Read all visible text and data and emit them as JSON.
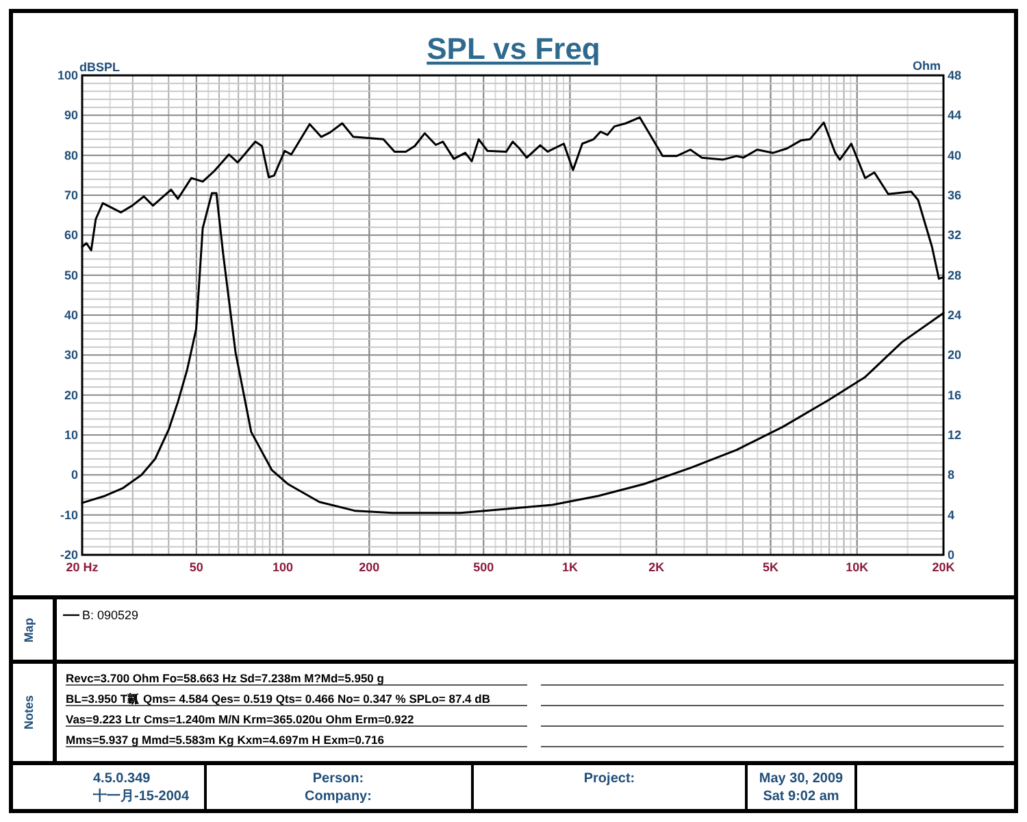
{
  "chart_data": {
    "type": "line",
    "title": "SPL vs Freq",
    "ylabel": "dBSPL",
    "y2label": "Ohm",
    "log": "x",
    "grid": true,
    "xlim": [
      20,
      20000
    ],
    "xticks": [
      {
        "value": 20,
        "label": "20  Hz"
      },
      50,
      100,
      200,
      500,
      {
        "value": 1000,
        "label": "1K"
      },
      {
        "value": 2000,
        "label": "2K"
      },
      {
        "value": 5000,
        "label": "5K"
      },
      {
        "value": 10000,
        "label": "10K"
      },
      {
        "value": 20000,
        "label": "20K"
      }
    ],
    "ylim": [
      -20,
      100
    ],
    "yticks": [
      -20,
      -10,
      0,
      10,
      20,
      30,
      40,
      50,
      60,
      70,
      80,
      90,
      100
    ],
    "y2lim": [
      0,
      48
    ],
    "y2ticks": [
      0,
      4,
      8,
      12,
      16,
      20,
      24,
      28,
      32,
      36,
      40,
      44,
      48
    ],
    "series": [
      {
        "color": "#000000",
        "x": [
          20,
          20.7,
          21.5,
          22.3,
          23.6,
          27.3,
          29.9,
          32.8,
          35.3,
          40.8,
          43.1,
          48,
          52.6,
          57.6,
          64.9,
          69.6,
          80.2,
          84.6,
          89.3,
          93.2,
          101.5,
          107,
          124,
          136,
          146,
          161,
          176,
          224,
          245,
          268,
          288,
          312,
          341,
          361,
          394,
          432,
          455,
          481,
          516,
          600,
          632,
          667,
          707,
          788,
          836,
          952,
          1025,
          1104,
          1209,
          1278,
          1351,
          1428,
          1566,
          1750,
          1882,
          2103,
          2350,
          2627,
          2881,
          3403,
          3803,
          4017,
          4488,
          5102,
          5700,
          6369,
          6853,
          7658,
          8393,
          8712,
          9549,
          10670,
          11490,
          12840,
          15440,
          16320,
          18240,
          19280,
          20000
        ],
        "values": [
          57.1,
          58,
          56.2,
          64,
          68,
          65.7,
          67.4,
          69.7,
          67.4,
          71.4,
          69.1,
          74.3,
          73.4,
          76,
          80.2,
          78.2,
          83.4,
          82.3,
          74.5,
          74.9,
          81.1,
          80.2,
          87.8,
          84.6,
          85.7,
          88,
          84.6,
          84,
          80.9,
          80.9,
          82.3,
          85.5,
          82.6,
          83.4,
          79.1,
          80.6,
          78.5,
          84,
          81.1,
          80.9,
          83.4,
          81.7,
          79.4,
          82.5,
          80.9,
          82.9,
          76.3,
          82.9,
          84,
          85.9,
          85.1,
          87.2,
          88,
          89.5,
          85.7,
          79.8,
          79.8,
          81.4,
          79.4,
          78.9,
          79.8,
          79.4,
          81.4,
          80.6,
          81.7,
          83.7,
          84,
          88.2,
          80.6,
          78.9,
          82.9,
          74.3,
          75.7,
          70.3,
          70.9,
          68.8,
          57.1,
          49.1,
          49.5
        ]
      },
      {
        "color": "#000000",
        "axis": "y2",
        "x": [
          20,
          24,
          27.8,
          32.2,
          35.9,
          40.1,
          43.1,
          46.4,
          49.9,
          52.6,
          56.6,
          58.7,
          62.1,
          68.4,
          77.6,
          91.5,
          104,
          134,
          179,
          241,
          416,
          600,
          869,
          1255,
          1815,
          2627,
          3803,
          5500,
          7960,
          10670,
          14350,
          20000
        ],
        "values": [
          5.2,
          5.9,
          6.7,
          8,
          9.6,
          12.6,
          15.3,
          18.5,
          22.6,
          32.7,
          36.2,
          36.2,
          29.9,
          20.3,
          12.3,
          8.5,
          7.1,
          5.3,
          4.4,
          4.2,
          4.2,
          4.6,
          5,
          5.9,
          7.1,
          8.7,
          10.5,
          12.8,
          15.5,
          17.8,
          21.3,
          24.2
        ]
      }
    ],
    "annotations": [
      "Map",
      "B:  090529",
      "Notes",
      "Revc=3.700 Ohm  Fo=58.663 Hz  Sd=7.238m M?Md=5.950 g",
      "BL=3.950 T瓤  Qms= 4.584  Qes= 0.519  Qts= 0.466  No= 0.347 %  SPLo= 87.4 dB",
      "Vas=9.223 Ltr  Cms=1.240m M/N  Krm=365.020u Ohm  Erm=0.922",
      "Mms=5.937 g  Mmd=5.583m Kg  Kxm=4.697m H  Exm=0.716",
      "4.5.0.349",
      "十一月-15-2004",
      "Person:",
      "Company:",
      "Project:",
      "May 30, 2009",
      "Sat  9:02 am"
    ]
  }
}
